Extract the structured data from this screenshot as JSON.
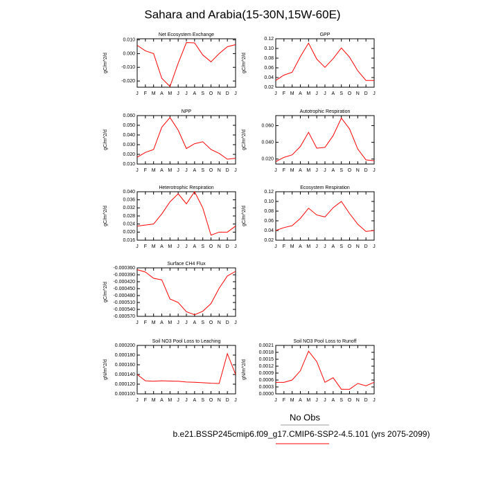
{
  "title": "Sahara and Arabia(15-30N,15W-60E)",
  "footer": {
    "obs": "No Obs",
    "case": "b.e21.BSSP245cmip6.f09_g17.CMIP6-SSP2-4.5.101 (yrs 2075-2099)"
  },
  "chart_data": [
    {
      "type": "line",
      "title": "Net Ecosystem Exchange",
      "ylabel": "gC/m^2/d",
      "color": "#ff0000",
      "categories": [
        "J",
        "F",
        "M",
        "A",
        "M",
        "J",
        "J",
        "A",
        "S",
        "O",
        "N",
        "D",
        "J"
      ],
      "values": [
        0.006,
        0.002,
        0.0,
        -0.018,
        -0.024,
        -0.007,
        0.008,
        0.0078,
        -0.001,
        -0.006,
        0.0,
        0.005,
        0.0065
      ],
      "ylim": [
        -0.0245,
        0.0108
      ],
      "yticks": [
        {
          "value": 0.01,
          "label": "0.010"
        },
        {
          "value": 0,
          "label": "0.000"
        },
        {
          "value": -0.01,
          "label": "-0.010"
        },
        {
          "value": -0.02,
          "label": "-0.020"
        }
      ]
    },
    {
      "type": "line",
      "title": "GPP",
      "ylabel": "gC/m^2/d",
      "color": "#ff0000",
      "categories": [
        "J",
        "F",
        "M",
        "A",
        "M",
        "J",
        "J",
        "A",
        "S",
        "O",
        "N",
        "D",
        "J"
      ],
      "values": [
        0.034,
        0.045,
        0.051,
        0.083,
        0.111,
        0.078,
        0.061,
        0.079,
        0.101,
        0.082,
        0.054,
        0.034,
        0.034
      ],
      "ylim": [
        0.02,
        0.12
      ],
      "yticks": [
        0.12,
        {
          "value": 0.1,
          "label": "0.10"
        },
        0.08,
        0.06,
        0.04,
        0.02
      ]
    },
    {
      "type": "line",
      "title": "NPP",
      "ylabel": "gC/m^2/d",
      "color": "#ff0000",
      "categories": [
        "J",
        "F",
        "M",
        "A",
        "M",
        "J",
        "J",
        "A",
        "S",
        "O",
        "N",
        "D",
        "J"
      ],
      "values": [
        0.017,
        0.022,
        0.025,
        0.048,
        0.058,
        0.045,
        0.026,
        0.031,
        0.033,
        0.025,
        0.021,
        0.015,
        0.016
      ],
      "ylim": [
        0.01,
        0.06
      ],
      "yticks": [
        {
          "value": 0.06,
          "label": "0.060"
        },
        {
          "value": 0.05,
          "label": "0.050"
        },
        {
          "value": 0.04,
          "label": "0.040"
        },
        {
          "value": 0.03,
          "label": "0.030"
        },
        {
          "value": 0.02,
          "label": "0.020"
        },
        {
          "value": 0.01,
          "label": "0.010"
        }
      ]
    },
    {
      "type": "line",
      "title": "Autotrophic Respiration",
      "ylabel": "gC/m^2/d",
      "color": "#ff0000",
      "categories": [
        "J",
        "F",
        "M",
        "A",
        "M",
        "J",
        "J",
        "A",
        "S",
        "O",
        "N",
        "D",
        "J"
      ],
      "values": [
        0.017,
        0.022,
        0.025,
        0.035,
        0.052,
        0.033,
        0.034,
        0.048,
        0.069,
        0.056,
        0.032,
        0.019,
        0.018
      ],
      "ylim": [
        0.014,
        0.072
      ],
      "yticks": [
        {
          "value": 0.06,
          "label": "0.060"
        },
        {
          "value": 0.04,
          "label": "0.040"
        },
        {
          "value": 0.02,
          "label": "0.020"
        }
      ]
    },
    {
      "type": "line",
      "title": "Heterotrophic Respiration",
      "ylabel": "gC/m^2/d",
      "color": "#ff0000",
      "categories": [
        "J",
        "F",
        "M",
        "A",
        "M",
        "J",
        "J",
        "A",
        "S",
        "O",
        "N",
        "D",
        "J"
      ],
      "values": [
        0.023,
        0.0235,
        0.024,
        0.029,
        0.035,
        0.039,
        0.034,
        0.04,
        0.032,
        0.0185,
        0.02,
        0.02,
        0.023
      ],
      "ylim": [
        0.016,
        0.04
      ],
      "yticks": [
        {
          "value": 0.04,
          "label": "0.040"
        },
        0.036,
        0.032,
        0.028,
        0.024,
        {
          "value": 0.02,
          "label": "0.020"
        },
        0.016
      ]
    },
    {
      "type": "line",
      "title": "Ecosystem Respiration",
      "ylabel": "gC/m^2/d",
      "color": "#ff0000",
      "categories": [
        "J",
        "F",
        "M",
        "A",
        "M",
        "J",
        "J",
        "A",
        "S",
        "O",
        "N",
        "D",
        "J"
      ],
      "values": [
        0.04,
        0.046,
        0.05,
        0.065,
        0.086,
        0.072,
        0.068,
        0.087,
        0.1,
        0.075,
        0.053,
        0.038,
        0.04
      ],
      "ylim": [
        0.02,
        0.12
      ],
      "yticks": [
        0.12,
        {
          "value": 0.1,
          "label": "0.10"
        },
        0.08,
        0.06,
        0.04,
        0.02
      ]
    },
    {
      "type": "line",
      "title": "Surface CH4 Flux",
      "ylabel": "gC/m^2/d",
      "color": "#ff0000",
      "categories": [
        "J",
        "F",
        "M",
        "A",
        "M",
        "J",
        "J",
        "A",
        "S",
        "O",
        "N",
        "D",
        "J"
      ],
      "values": [
        -0.000368,
        -0.000378,
        -0.000405,
        -0.000412,
        -0.000495,
        -0.00051,
        -0.00055,
        -0.000563,
        -0.000548,
        -0.000515,
        -0.000448,
        -0.000395,
        -0.000375
      ],
      "ylim": [
        -0.00057,
        -0.00036
      ],
      "yticks": [
        {
          "value": -0.00036,
          "label": "-0.000360"
        },
        {
          "value": -0.00039,
          "label": "-0.000390"
        },
        {
          "value": -0.00042,
          "label": "-0.000420"
        },
        {
          "value": -0.00045,
          "label": "-0.000450"
        },
        {
          "value": -0.00048,
          "label": "-0.000480"
        },
        {
          "value": -0.00051,
          "label": "-0.000510"
        },
        {
          "value": -0.00054,
          "label": "-0.000540"
        },
        {
          "value": -0.00057,
          "label": "-0.000570"
        }
      ]
    },
    {
      "type": "line",
      "title": "Soil NO3 Pool Loss to Leaching",
      "ylabel": "gN/m^2/d",
      "color": "#ff0000",
      "categories": [
        "J",
        "F",
        "M",
        "A",
        "M",
        "J",
        "J",
        "A",
        "S",
        "O",
        "N",
        "D",
        "J"
      ],
      "values": [
        0.00014,
        0.000127,
        0.000126,
        0.000127,
        0.0001265,
        0.000126,
        0.0001245,
        0.000124,
        0.000123,
        0.000122,
        0.0001215,
        0.000183,
        0.00014
      ],
      "ylim": [
        0.0001,
        0.0002
      ],
      "yticks": [
        {
          "value": 0.0002,
          "label": "0.000200"
        },
        {
          "value": 0.00018,
          "label": "0.000180"
        },
        {
          "value": 0.00016,
          "label": "0.000160"
        },
        {
          "value": 0.00014,
          "label": "0.000140"
        },
        {
          "value": 0.00012,
          "label": "0.000120"
        },
        {
          "value": 0.0001,
          "label": "0.000100"
        }
      ]
    },
    {
      "type": "line",
      "title": "Soil NO3 Pool Loss to Runoff",
      "ylabel": "gN/m^2/d",
      "color": "#ff0000",
      "categories": [
        "J",
        "F",
        "M",
        "A",
        "M",
        "J",
        "J",
        "A",
        "S",
        "O",
        "N",
        "D",
        "J"
      ],
      "values": [
        0.0005,
        0.0005,
        0.0006,
        0.001,
        0.00185,
        0.0014,
        0.0005,
        0.0007,
        0.0002,
        0.0002,
        0.00045,
        0.00035,
        0.0005
      ],
      "ylim": [
        0,
        0.0021
      ],
      "yticks": [
        0.0021,
        0.0018,
        0.0015,
        0.0012,
        0.0009,
        0.0006,
        0.0003,
        {
          "value": 0,
          "label": "0.0000"
        }
      ]
    }
  ]
}
